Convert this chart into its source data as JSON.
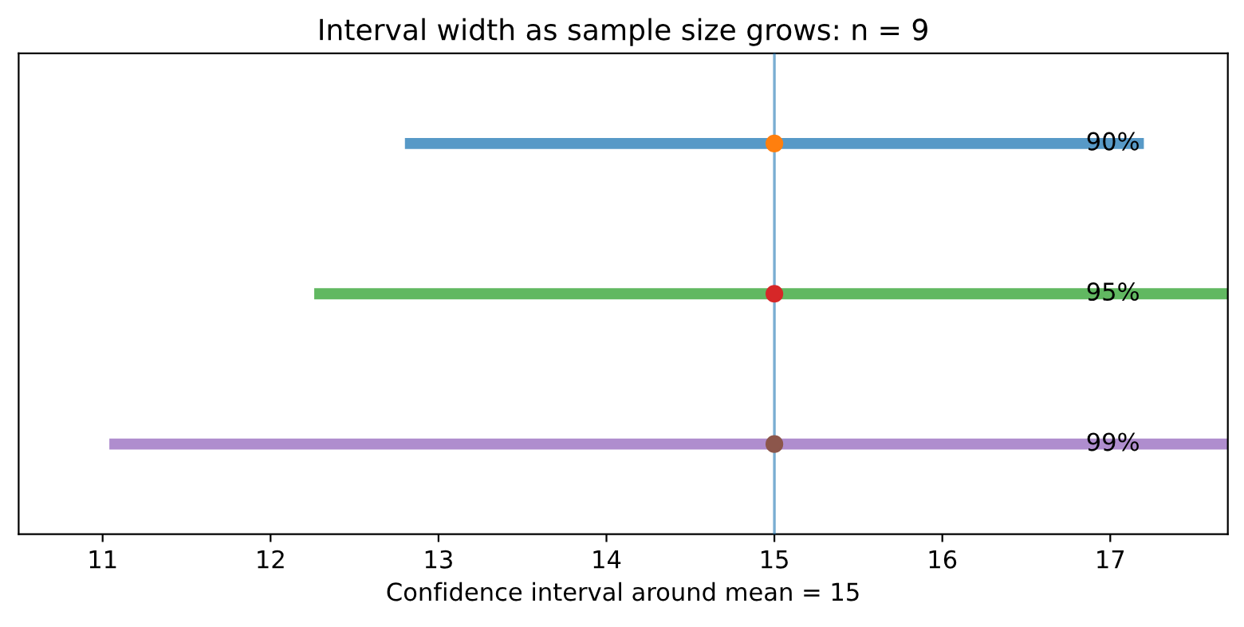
{
  "chart_data": {
    "type": "bar",
    "orientation": "horizontal",
    "title": "Interval width as sample size grows: n = 9",
    "xlabel": "Confidence interval around mean = 15",
    "categories": [
      "90%",
      "95%",
      "99%"
    ],
    "series": [
      {
        "base": [
          12.8,
          12.26,
          11.04
        ],
        "values": [
          4.4,
          5.48,
          7.92
        ],
        "colors": [
          "#5799c7",
          "#61b861",
          "#af8dce"
        ]
      },
      {
        "type": "scatter",
        "values": [
          15,
          15,
          15
        ],
        "colors": [
          "#ff7f0e",
          "#d62728",
          "#8c564b"
        ]
      }
    ],
    "ref_lines": [
      {
        "axis": "x",
        "value": 15,
        "color": "#1f77b4"
      }
    ],
    "xlim": [
      10.5,
      17.7
    ],
    "xticks": [
      11,
      12,
      13,
      14,
      15,
      16,
      17
    ],
    "grid": false,
    "legend": false,
    "marker": "circle"
  }
}
